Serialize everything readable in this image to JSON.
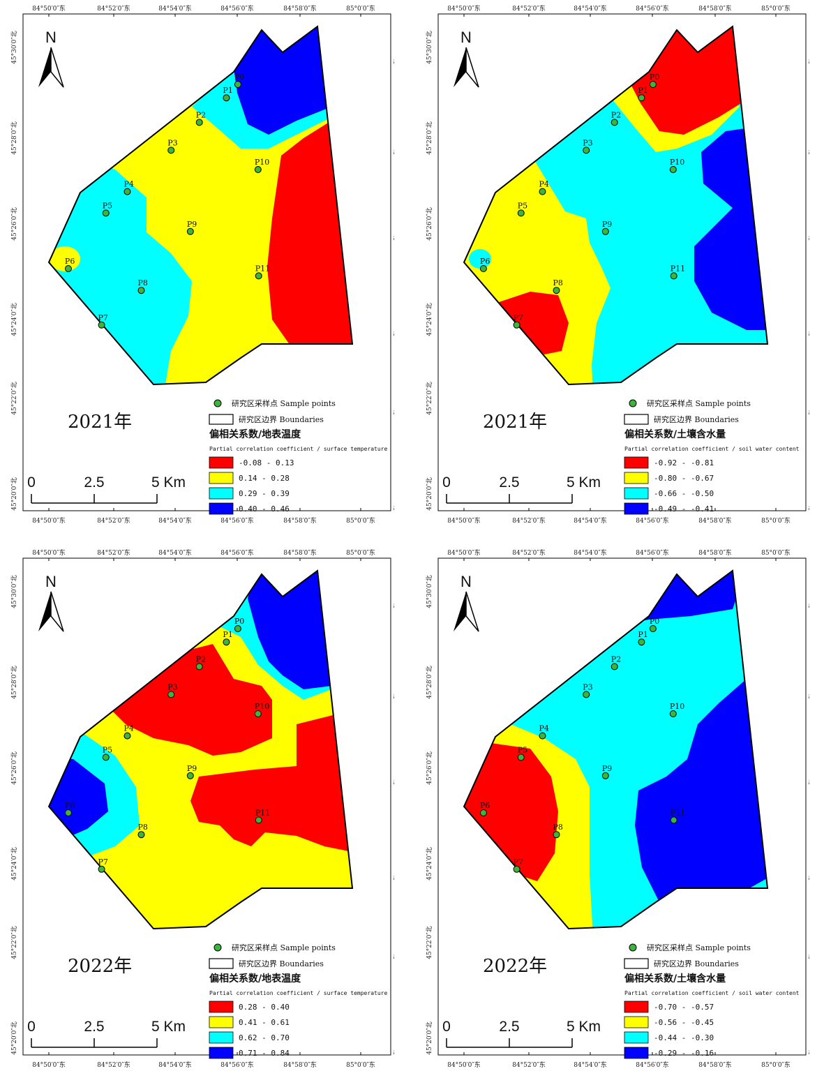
{
  "colors": {
    "red": "#ff0000",
    "yellow": "#ffff00",
    "cyan": "#00ffff",
    "blue": "#0000ff",
    "point": "#3db53d"
  },
  "axes": {
    "top_lon": [
      "84°50′0″东",
      "84°52′0″东",
      "84°54′0″东",
      "84°56′0″东",
      "84°58′0″东",
      "85°0′0″东"
    ],
    "lat": [
      "45°30′0″北",
      "45°28′0″北",
      "45°26′0″北",
      "45°24′0″北",
      "45°22′0″北",
      "45°20′0″北"
    ]
  },
  "north": {
    "label": "N"
  },
  "scale_bar": {
    "labels": [
      "0",
      "2.5",
      "5 Km"
    ]
  },
  "legend_common": {
    "sample_points": "研究区采样点 Sample points",
    "boundaries": "研究区边界  Boundaries"
  },
  "points": [
    {
      "id": "P0",
      "x": 0.62,
      "y": 0.09
    },
    {
      "id": "P1",
      "x": 0.583,
      "y": 0.138
    },
    {
      "id": "P2",
      "x": 0.496,
      "y": 0.226
    },
    {
      "id": "P3",
      "x": 0.405,
      "y": 0.326
    },
    {
      "id": "P4",
      "x": 0.264,
      "y": 0.474
    },
    {
      "id": "P5",
      "x": 0.195,
      "y": 0.551
    },
    {
      "id": "P6",
      "x": 0.074,
      "y": 0.75
    },
    {
      "id": "P7",
      "x": 0.181,
      "y": 0.952
    },
    {
      "id": "P8",
      "x": 0.309,
      "y": 0.828
    },
    {
      "id": "P9",
      "x": 0.467,
      "y": 0.617
    },
    {
      "id": "P10",
      "x": 0.685,
      "y": 0.395
    },
    {
      "id": "P11",
      "x": 0.687,
      "y": 0.776
    }
  ],
  "panels": [
    {
      "year": "2021年",
      "title": "偏相关系数/地表温度",
      "subtitle": "Partial correlation coefficient / surface temperature",
      "classes": [
        {
          "range": "-0.08 - 0.13",
          "color": "#ff0000"
        },
        {
          "range": "0.14 - 0.28",
          "color": "#ffff00"
        },
        {
          "range": "0.29 - 0.39",
          "color": "#00ffff"
        },
        {
          "range": "0.40 - 0.46",
          "color": "#0000ff"
        }
      ]
    },
    {
      "year": "2021年",
      "title": "偏相关系数/土壤含水量",
      "subtitle": "Partial correlation coefficient / soil water content",
      "classes": [
        {
          "range": "-0.92 - -0.81",
          "color": "#ff0000"
        },
        {
          "range": "-0.80 - -0.67",
          "color": "#ffff00"
        },
        {
          "range": "-0.66 - -0.50",
          "color": "#00ffff"
        },
        {
          "range": "-0.49 - -0.41",
          "color": "#0000ff"
        }
      ]
    },
    {
      "year": "2022年",
      "title": "偏相关系数/地表温度",
      "subtitle": "Partial correlation coefficient / surface temperature",
      "classes": [
        {
          "range": "0.28 - 0.40",
          "color": "#ff0000"
        },
        {
          "range": "0.41 - 0.61",
          "color": "#ffff00"
        },
        {
          "range": "0.62 - 0.70",
          "color": "#00ffff"
        },
        {
          "range": "0.71 - 0.84",
          "color": "#0000ff"
        }
      ]
    },
    {
      "year": "2022年",
      "title": "偏相关系数/土壤含水量",
      "subtitle": "Partial correlation coefficient / soil water content",
      "classes": [
        {
          "range": "-0.70 - -0.57",
          "color": "#ff0000"
        },
        {
          "range": "-0.56 - -0.45",
          "color": "#ffff00"
        },
        {
          "range": "-0.44 - -0.30",
          "color": "#00ffff"
        },
        {
          "range": "-0.29 - -0.16",
          "color": "#0000ff"
        }
      ]
    }
  ]
}
